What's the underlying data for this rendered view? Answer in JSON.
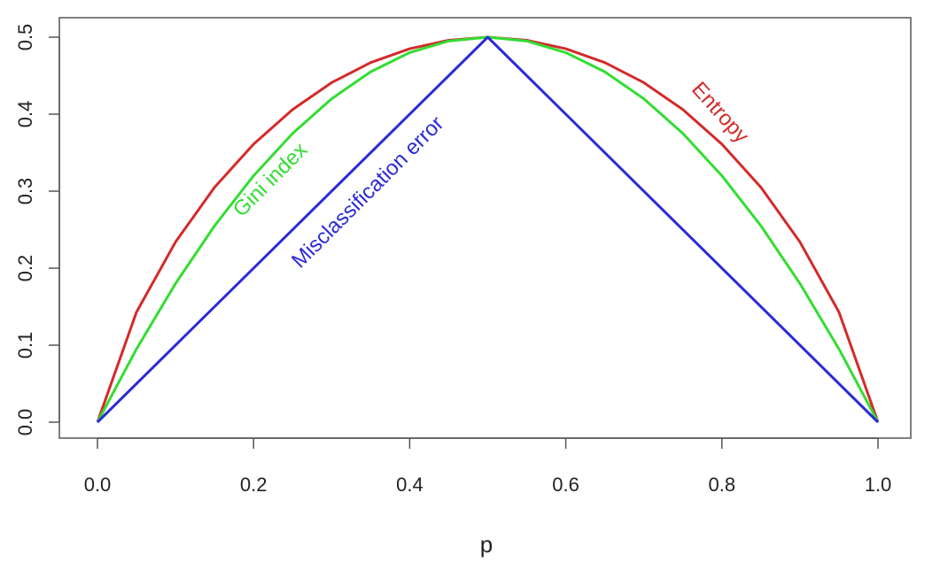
{
  "chart_data": {
    "type": "line",
    "title": "",
    "xlabel": "p",
    "ylabel": "",
    "xlim": [
      0,
      1
    ],
    "ylim": [
      0,
      0.5
    ],
    "xticks": [
      "0.0",
      "0.2",
      "0.4",
      "0.6",
      "0.8",
      "1.0"
    ],
    "yticks": [
      "0.0",
      "0.1",
      "0.2",
      "0.3",
      "0.4",
      "0.5"
    ],
    "grid": false,
    "legend": "none",
    "series": [
      {
        "name": "Entropy",
        "color": "#d42a2a",
        "x": [
          0.0,
          0.05,
          0.1,
          0.15,
          0.2,
          0.25,
          0.3,
          0.35,
          0.4,
          0.45,
          0.5,
          0.55,
          0.6,
          0.65,
          0.7,
          0.75,
          0.8,
          0.85,
          0.9,
          0.95,
          1.0
        ],
        "y": [
          0.0,
          0.143,
          0.234,
          0.305,
          0.361,
          0.406,
          0.441,
          0.467,
          0.485,
          0.496,
          0.5,
          0.496,
          0.485,
          0.467,
          0.441,
          0.406,
          0.361,
          0.305,
          0.234,
          0.143,
          0.0
        ]
      },
      {
        "name": "Gini index",
        "color": "#33dd33",
        "x": [
          0.0,
          0.05,
          0.1,
          0.15,
          0.2,
          0.25,
          0.3,
          0.35,
          0.4,
          0.45,
          0.5,
          0.55,
          0.6,
          0.65,
          0.7,
          0.75,
          0.8,
          0.85,
          0.9,
          0.95,
          1.0
        ],
        "y": [
          0.0,
          0.095,
          0.18,
          0.255,
          0.32,
          0.375,
          0.42,
          0.455,
          0.48,
          0.495,
          0.5,
          0.495,
          0.48,
          0.455,
          0.42,
          0.375,
          0.32,
          0.255,
          0.18,
          0.095,
          0.0
        ]
      },
      {
        "name": "Misclassification error",
        "color": "#2b2bd6",
        "x": [
          0.0,
          0.5,
          1.0
        ],
        "y": [
          0.0,
          0.5,
          0.0
        ]
      }
    ]
  }
}
